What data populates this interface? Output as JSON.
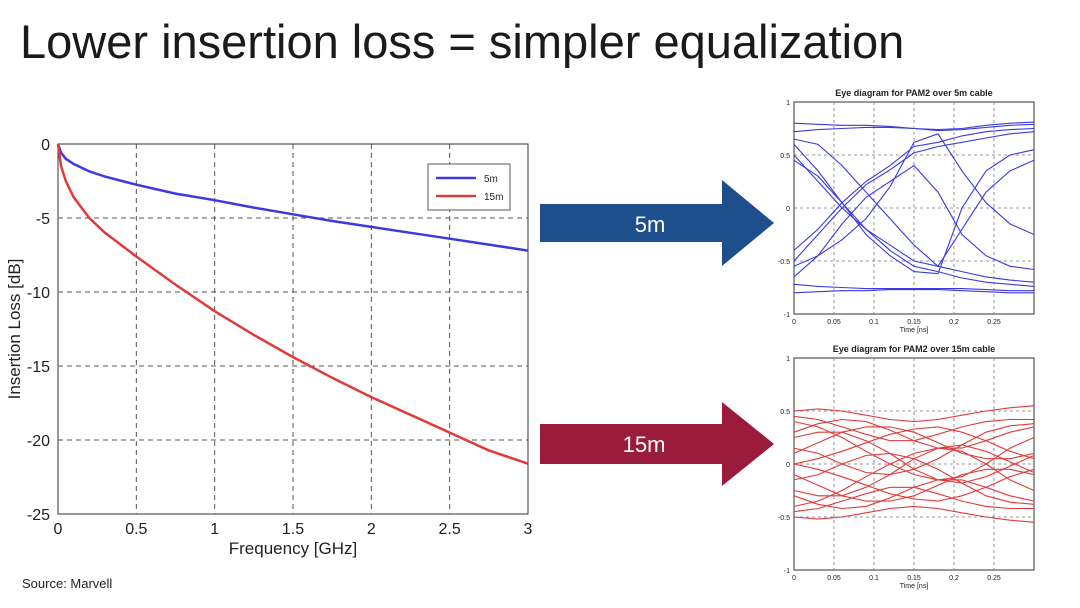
{
  "slide": {
    "title": "Lower insertion loss = simpler equalization",
    "source": "Source: Marvell"
  },
  "arrows": {
    "top_label": "5m",
    "bottom_label": "15m",
    "top_color": "#1f4e8c",
    "bottom_color": "#9b1b3a"
  },
  "chart_data": [
    {
      "type": "line",
      "xlabel": "Frequency [GHz]",
      "ylabel": "Insertion Loss [dB]",
      "xlim": [
        0,
        3
      ],
      "ylim": [
        -25,
        0
      ],
      "xticks": [
        "0",
        "0.5",
        "1",
        "1.5",
        "2",
        "2.5",
        "3"
      ],
      "yticks": [
        "0",
        "-5",
        "-10",
        "-15",
        "-20",
        "-25"
      ],
      "grid": true,
      "legend": "top-right",
      "series": [
        {
          "name": "5m",
          "color": "#3a3ae0",
          "x": [
            0,
            0.02,
            0.05,
            0.1,
            0.2,
            0.3,
            0.5,
            0.75,
            1.0,
            1.25,
            1.5,
            1.75,
            2.0,
            2.25,
            2.5,
            2.75,
            3.0
          ],
          "y": [
            0,
            -0.6,
            -1.0,
            -1.35,
            -1.85,
            -2.2,
            -2.75,
            -3.35,
            -3.8,
            -4.3,
            -4.75,
            -5.2,
            -5.6,
            -6.0,
            -6.4,
            -6.8,
            -7.2
          ]
        },
        {
          "name": "15m",
          "color": "#e03a3a",
          "x": [
            0,
            0.02,
            0.05,
            0.1,
            0.2,
            0.3,
            0.5,
            0.75,
            1.0,
            1.25,
            1.5,
            1.75,
            2.0,
            2.25,
            2.5,
            2.75,
            3.0
          ],
          "y": [
            0,
            -1.5,
            -2.5,
            -3.6,
            -5.0,
            -6.0,
            -7.6,
            -9.5,
            -11.3,
            -12.9,
            -14.4,
            -15.8,
            -17.1,
            -18.3,
            -19.5,
            -20.7,
            -21.6
          ]
        }
      ]
    },
    {
      "type": "line",
      "title": "Eye diagram for PAM2 over 5m cable",
      "xlabel": "Time [ns]",
      "xlim": [
        0,
        0.3
      ],
      "ylim": [
        -1,
        1
      ],
      "xticks": [
        "0",
        "0.05",
        "0.1",
        "0.15",
        "0.2",
        "0.25"
      ],
      "yticks": [
        "1",
        "0.5",
        "0",
        "-0.5",
        "-1"
      ],
      "grid": true,
      "color": "#3a3ae0",
      "x": [
        0,
        0.03,
        0.06,
        0.09,
        0.12,
        0.15,
        0.18,
        0.21,
        0.24,
        0.27,
        0.3
      ],
      "series": [
        {
          "values": [
            0.8,
            0.79,
            0.78,
            0.78,
            0.77,
            0.75,
            0.74,
            0.75,
            0.78,
            0.8,
            0.81
          ]
        },
        {
          "values": [
            0.72,
            0.74,
            0.75,
            0.76,
            0.76,
            0.75,
            0.73,
            0.74,
            0.76,
            0.78,
            0.79
          ]
        },
        {
          "values": [
            -0.8,
            -0.79,
            -0.78,
            -0.78,
            -0.77,
            -0.77,
            -0.77,
            -0.78,
            -0.79,
            -0.8,
            -0.8
          ]
        },
        {
          "values": [
            -0.72,
            -0.74,
            -0.75,
            -0.76,
            -0.76,
            -0.76,
            -0.76,
            -0.76,
            -0.77,
            -0.78,
            -0.78
          ]
        },
        {
          "values": [
            -0.4,
            -0.2,
            0.05,
            0.25,
            0.4,
            0.58,
            0.62,
            0.68,
            0.72,
            0.74,
            0.75
          ]
        },
        {
          "values": [
            -0.5,
            -0.25,
            0.0,
            0.22,
            0.36,
            0.52,
            0.58,
            0.62,
            0.66,
            0.7,
            0.72
          ]
        },
        {
          "values": [
            0.6,
            0.35,
            0.05,
            -0.2,
            -0.4,
            -0.55,
            -0.6,
            -0.66,
            -0.7,
            -0.72,
            -0.74
          ]
        },
        {
          "values": [
            0.5,
            0.25,
            0.0,
            -0.2,
            -0.35,
            -0.5,
            -0.55,
            -0.6,
            -0.65,
            -0.68,
            -0.7
          ]
        },
        {
          "values": [
            -0.65,
            -0.45,
            -0.15,
            0.1,
            0.25,
            0.4,
            0.15,
            -0.25,
            -0.45,
            -0.55,
            -0.58
          ]
        },
        {
          "values": [
            0.65,
            0.6,
            0.4,
            0.15,
            -0.1,
            -0.35,
            -0.55,
            -0.2,
            0.15,
            0.35,
            0.45
          ]
        },
        {
          "values": [
            -0.55,
            -0.45,
            -0.3,
            -0.1,
            0.2,
            0.62,
            0.7,
            0.35,
            0.05,
            -0.15,
            -0.25
          ]
        },
        {
          "values": [
            0.45,
            0.3,
            0.05,
            -0.25,
            -0.45,
            -0.6,
            -0.62,
            0.0,
            0.35,
            0.5,
            0.55
          ]
        }
      ]
    },
    {
      "type": "line",
      "title": "Eye diagram for PAM2 over 15m cable",
      "xlabel": "Time [ns]",
      "xlim": [
        0,
        0.3
      ],
      "ylim": [
        -1,
        1
      ],
      "xticks": [
        "0",
        "0.05",
        "0.1",
        "0.15",
        "0.2",
        "0.25"
      ],
      "yticks": [
        "1",
        "0.5",
        "0",
        "-0.5",
        "-1"
      ],
      "grid": true,
      "color": "#e03a3a",
      "x": [
        0,
        0.03,
        0.06,
        0.09,
        0.12,
        0.15,
        0.18,
        0.21,
        0.24,
        0.27,
        0.3
      ],
      "series": [
        {
          "values": [
            0.5,
            0.52,
            0.5,
            0.46,
            0.42,
            0.4,
            0.42,
            0.46,
            0.5,
            0.53,
            0.55
          ]
        },
        {
          "values": [
            -0.5,
            -0.52,
            -0.5,
            -0.46,
            -0.42,
            -0.4,
            -0.42,
            -0.46,
            -0.5,
            -0.53,
            -0.55
          ]
        },
        {
          "values": [
            0.3,
            0.38,
            0.42,
            0.4,
            0.32,
            0.22,
            0.15,
            0.15,
            0.22,
            0.3,
            0.35
          ]
        },
        {
          "values": [
            -0.3,
            -0.38,
            -0.42,
            -0.4,
            -0.32,
            -0.22,
            -0.15,
            -0.15,
            -0.22,
            -0.3,
            -0.35
          ]
        },
        {
          "values": [
            0.25,
            0.3,
            0.3,
            0.22,
            0.1,
            -0.05,
            -0.15,
            -0.18,
            -0.12,
            -0.02,
            0.08
          ]
        },
        {
          "values": [
            -0.25,
            -0.3,
            -0.3,
            -0.22,
            -0.1,
            0.05,
            0.15,
            0.18,
            0.12,
            0.02,
            -0.08
          ]
        },
        {
          "values": [
            0.1,
            0.2,
            0.3,
            0.35,
            0.35,
            0.3,
            0.2,
            0.1,
            0.05,
            0.05,
            0.1
          ]
        },
        {
          "values": [
            -0.1,
            -0.2,
            -0.3,
            -0.35,
            -0.35,
            -0.3,
            -0.2,
            -0.1,
            -0.05,
            -0.05,
            -0.1
          ]
        },
        {
          "values": [
            0.0,
            0.05,
            0.12,
            0.2,
            0.28,
            0.33,
            0.35,
            0.3,
            0.22,
            0.12,
            0.05
          ]
        },
        {
          "values": [
            0.0,
            -0.05,
            -0.12,
            -0.2,
            -0.28,
            -0.33,
            -0.35,
            -0.3,
            -0.22,
            -0.12,
            -0.05
          ]
        },
        {
          "values": [
            0.4,
            0.35,
            0.25,
            0.12,
            0.0,
            -0.1,
            -0.15,
            -0.12,
            0.0,
            0.15,
            0.25
          ]
        },
        {
          "values": [
            -0.4,
            -0.35,
            -0.25,
            -0.12,
            0.0,
            0.1,
            0.15,
            0.12,
            0.0,
            -0.15,
            -0.25
          ]
        },
        {
          "values": [
            0.15,
            0.1,
            0.0,
            -0.08,
            -0.1,
            -0.05,
            0.05,
            0.18,
            0.3,
            0.36,
            0.38
          ]
        },
        {
          "values": [
            -0.15,
            -0.1,
            0.0,
            0.08,
            0.1,
            0.05,
            -0.05,
            -0.18,
            -0.3,
            -0.36,
            -0.38
          ]
        },
        {
          "values": [
            0.45,
            0.42,
            0.35,
            0.28,
            0.22,
            0.22,
            0.28,
            0.35,
            0.4,
            0.42,
            0.42
          ]
        },
        {
          "values": [
            -0.45,
            -0.42,
            -0.35,
            -0.28,
            -0.22,
            -0.22,
            -0.28,
            -0.35,
            -0.4,
            -0.42,
            -0.42
          ]
        }
      ]
    }
  ]
}
